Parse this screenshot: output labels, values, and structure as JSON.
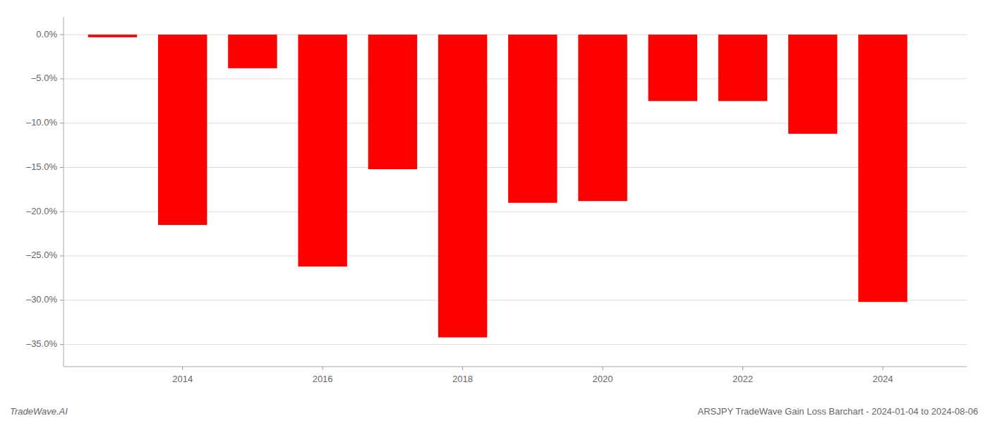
{
  "chart_data": {
    "type": "bar",
    "x": [
      2013,
      2014,
      2015,
      2016,
      2017,
      2018,
      2019,
      2020,
      2021,
      2022,
      2023,
      2024
    ],
    "values": [
      -0.3,
      -21.5,
      -3.8,
      -26.2,
      -15.2,
      -34.2,
      -19.0,
      -18.8,
      -7.5,
      -7.5,
      -11.2,
      -30.2
    ],
    "color": "#ff0000",
    "xlim": [
      2012.3,
      2025.2
    ],
    "xticks": [
      2014,
      2016,
      2018,
      2020,
      2022,
      2024
    ],
    "ylim": [
      -37.5,
      2.0
    ],
    "yticks": [
      {
        "value": 0.0,
        "label": "0.0%"
      },
      {
        "value": -5.0,
        "label": "–5.0%"
      },
      {
        "value": -10.0,
        "label": "–10.0%"
      },
      {
        "value": -15.0,
        "label": "–15.0%"
      },
      {
        "value": -20.0,
        "label": "–20.0%"
      },
      {
        "value": -25.0,
        "label": "–25.0%"
      },
      {
        "value": -30.0,
        "label": "–30.0%"
      },
      {
        "value": -35.0,
        "label": "–35.0%"
      }
    ],
    "grid": true,
    "annotations": [
      "TradeWave.AI",
      "ARSJPY TradeWave Gain Loss Barchart - 2024-01-04 to 2024-08-06"
    ]
  }
}
